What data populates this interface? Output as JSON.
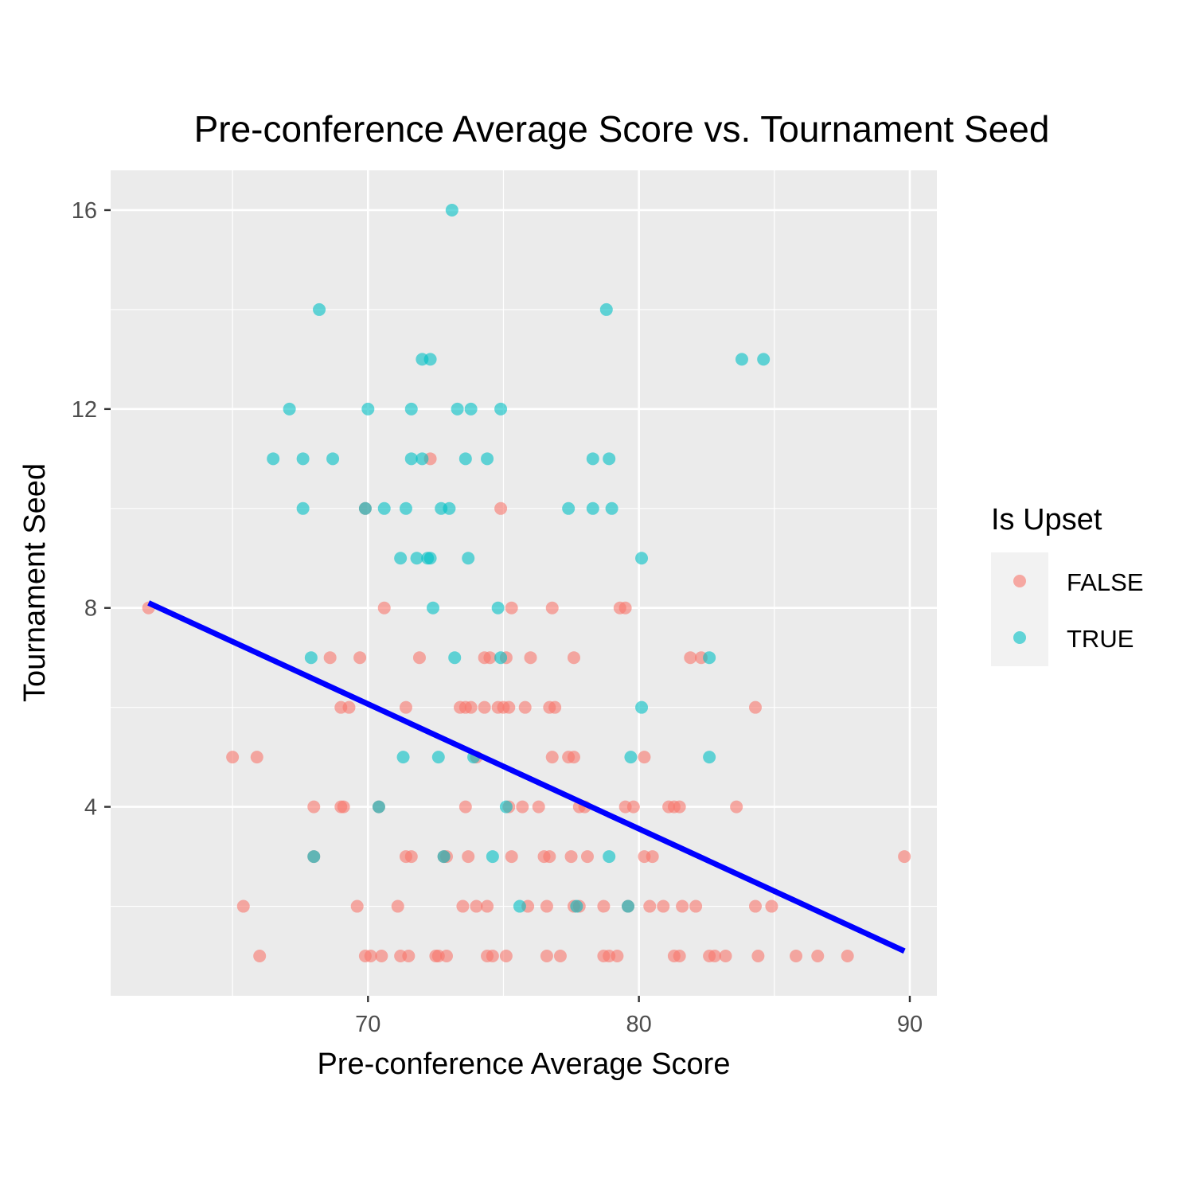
{
  "chart_data": {
    "type": "scatter",
    "title": "Pre-conference Average Score vs. Tournament Seed",
    "xlabel": "Pre-conference Average Score",
    "ylabel": "Tournament Seed",
    "xlim": [
      60.5,
      91.0
    ],
    "ylim": [
      0.2,
      16.8
    ],
    "x_ticks": [
      70,
      80,
      90
    ],
    "y_ticks": [
      4,
      8,
      12,
      16
    ],
    "x_tick_labels": [
      "70",
      "80",
      "90"
    ],
    "y_tick_labels": [
      "4",
      "8",
      "12",
      "16"
    ],
    "grid": true,
    "legend": {
      "title": "Is Upset",
      "position": "right",
      "entries": [
        {
          "label": "FALSE",
          "color": "#F8766D"
        },
        {
          "label": "TRUE",
          "color": "#00BFC4"
        }
      ]
    },
    "trend_line": {
      "color": "#0000ff",
      "x": [
        61.9,
        89.8
      ],
      "y": [
        8.1,
        1.1
      ]
    },
    "series": [
      {
        "name": "FALSE",
        "color": "#F8766D",
        "points": [
          [
            61.9,
            8
          ],
          [
            65.0,
            5
          ],
          [
            65.9,
            5
          ],
          [
            65.4,
            2
          ],
          [
            66.0,
            1
          ],
          [
            68.0,
            4
          ],
          [
            68.0,
            3
          ],
          [
            68.6,
            7
          ],
          [
            69.0,
            6
          ],
          [
            69.3,
            6
          ],
          [
            69.0,
            4
          ],
          [
            69.1,
            4
          ],
          [
            69.6,
            2
          ],
          [
            69.7,
            7
          ],
          [
            69.9,
            10
          ],
          [
            69.9,
            1
          ],
          [
            70.1,
            1
          ],
          [
            70.4,
            4
          ],
          [
            70.5,
            1
          ],
          [
            70.6,
            8
          ],
          [
            71.1,
            2
          ],
          [
            71.2,
            1
          ],
          [
            71.4,
            6
          ],
          [
            71.4,
            3
          ],
          [
            71.6,
            3
          ],
          [
            71.5,
            1
          ],
          [
            71.9,
            7
          ],
          [
            72.3,
            11
          ],
          [
            72.5,
            1
          ],
          [
            72.6,
            1
          ],
          [
            72.8,
            3
          ],
          [
            72.9,
            3
          ],
          [
            72.9,
            1
          ],
          [
            73.4,
            6
          ],
          [
            73.6,
            6
          ],
          [
            73.5,
            2
          ],
          [
            73.6,
            4
          ],
          [
            73.7,
            3
          ],
          [
            73.8,
            6
          ],
          [
            74.0,
            5
          ],
          [
            74.0,
            2
          ],
          [
            74.3,
            7
          ],
          [
            74.3,
            6
          ],
          [
            74.4,
            2
          ],
          [
            74.5,
            7
          ],
          [
            74.4,
            1
          ],
          [
            74.6,
            1
          ],
          [
            74.8,
            6
          ],
          [
            74.9,
            10
          ],
          [
            75.0,
            6
          ],
          [
            75.1,
            7
          ],
          [
            75.2,
            6
          ],
          [
            75.2,
            4
          ],
          [
            75.1,
            1
          ],
          [
            75.3,
            3
          ],
          [
            75.3,
            8
          ],
          [
            75.7,
            4
          ],
          [
            75.8,
            6
          ],
          [
            75.9,
            2
          ],
          [
            76.0,
            7
          ],
          [
            76.3,
            4
          ],
          [
            76.5,
            3
          ],
          [
            76.6,
            1
          ],
          [
            76.6,
            2
          ],
          [
            76.7,
            6
          ],
          [
            76.7,
            3
          ],
          [
            76.8,
            8
          ],
          [
            76.8,
            5
          ],
          [
            76.9,
            6
          ],
          [
            77.1,
            1
          ],
          [
            77.4,
            5
          ],
          [
            77.5,
            3
          ],
          [
            77.6,
            5
          ],
          [
            77.6,
            2
          ],
          [
            77.6,
            7
          ],
          [
            77.8,
            2
          ],
          [
            77.8,
            4
          ],
          [
            78.0,
            4
          ],
          [
            78.1,
            3
          ],
          [
            78.7,
            2
          ],
          [
            78.7,
            1
          ],
          [
            78.9,
            1
          ],
          [
            79.2,
            1
          ],
          [
            79.3,
            8
          ],
          [
            79.5,
            4
          ],
          [
            79.5,
            8
          ],
          [
            79.6,
            2
          ],
          [
            79.8,
            4
          ],
          [
            80.2,
            5
          ],
          [
            80.2,
            3
          ],
          [
            80.4,
            2
          ],
          [
            80.5,
            3
          ],
          [
            80.9,
            2
          ],
          [
            81.1,
            4
          ],
          [
            81.3,
            4
          ],
          [
            81.3,
            1
          ],
          [
            81.5,
            1
          ],
          [
            81.5,
            4
          ],
          [
            81.6,
            2
          ],
          [
            81.9,
            7
          ],
          [
            82.1,
            2
          ],
          [
            82.3,
            7
          ],
          [
            82.6,
            1
          ],
          [
            82.8,
            1
          ],
          [
            83.2,
            1
          ],
          [
            83.6,
            4
          ],
          [
            84.3,
            6
          ],
          [
            84.3,
            2
          ],
          [
            84.4,
            1
          ],
          [
            84.9,
            2
          ],
          [
            85.8,
            1
          ],
          [
            86.6,
            1
          ],
          [
            87.7,
            1
          ],
          [
            89.8,
            3
          ]
        ]
      },
      {
        "name": "TRUE",
        "color": "#00BFC4",
        "points": [
          [
            66.5,
            11
          ],
          [
            67.1,
            12
          ],
          [
            67.6,
            11
          ],
          [
            67.6,
            10
          ],
          [
            67.9,
            7
          ],
          [
            68.0,
            3
          ],
          [
            68.2,
            14
          ],
          [
            68.7,
            11
          ],
          [
            69.9,
            10
          ],
          [
            70.0,
            12
          ],
          [
            70.4,
            4
          ],
          [
            70.6,
            10
          ],
          [
            71.2,
            9
          ],
          [
            71.3,
            5
          ],
          [
            71.4,
            10
          ],
          [
            71.6,
            11
          ],
          [
            71.6,
            12
          ],
          [
            71.8,
            9
          ],
          [
            72.0,
            11
          ],
          [
            72.0,
            13
          ],
          [
            72.2,
            9
          ],
          [
            72.3,
            9
          ],
          [
            72.3,
            13
          ],
          [
            72.4,
            8
          ],
          [
            72.6,
            5
          ],
          [
            72.7,
            10
          ],
          [
            72.8,
            3
          ],
          [
            73.0,
            10
          ],
          [
            73.1,
            16
          ],
          [
            73.2,
            7
          ],
          [
            73.3,
            12
          ],
          [
            73.6,
            11
          ],
          [
            73.7,
            9
          ],
          [
            73.8,
            12
          ],
          [
            73.9,
            5
          ],
          [
            74.4,
            11
          ],
          [
            74.6,
            3
          ],
          [
            74.8,
            8
          ],
          [
            74.9,
            7
          ],
          [
            74.9,
            12
          ],
          [
            75.1,
            4
          ],
          [
            75.6,
            2
          ],
          [
            77.4,
            10
          ],
          [
            77.7,
            2
          ],
          [
            78.3,
            11
          ],
          [
            78.3,
            10
          ],
          [
            78.8,
            14
          ],
          [
            78.9,
            11
          ],
          [
            78.9,
            3
          ],
          [
            79.0,
            10
          ],
          [
            79.6,
            2
          ],
          [
            79.7,
            5
          ],
          [
            80.1,
            6
          ],
          [
            80.1,
            9
          ],
          [
            82.6,
            7
          ],
          [
            82.6,
            5
          ],
          [
            83.8,
            13
          ],
          [
            84.6,
            13
          ]
        ]
      }
    ]
  }
}
